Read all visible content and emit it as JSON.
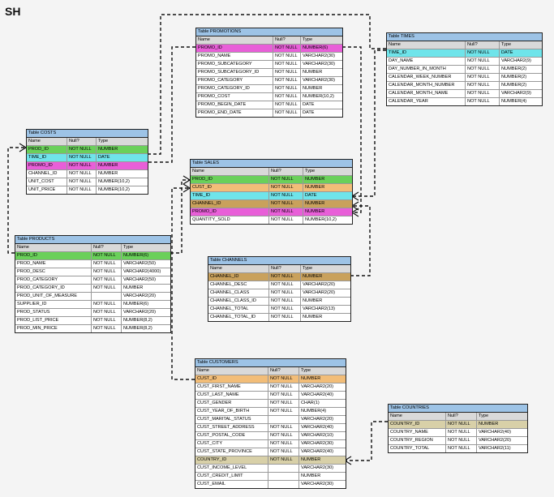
{
  "schema_title": "SH",
  "tables": [
    {
      "id": "promotions",
      "title": "Table PROMOTIONS",
      "headers": [
        "Name",
        "Null?",
        "Type"
      ],
      "rows": [
        {
          "name": "PROMO_ID",
          "null": "NOT NULL",
          "type": "NUMBER(6)",
          "hl": "pink"
        },
        {
          "name": "PROMO_NAME",
          "null": "NOT NULL",
          "type": "VARCHAR2(30)"
        },
        {
          "name": "PROMO_SUBCATEGORY",
          "null": "NOT NULL",
          "type": "VARCHAR2(30)"
        },
        {
          "name": "PROMO_SUBCATEGORY_ID",
          "null": "NOT NULL",
          "type": "NUMBER"
        },
        {
          "name": "PROMO_CATEGORY",
          "null": "NOT NULL",
          "type": "VARCHAR2(30)"
        },
        {
          "name": "PROMO_CATEGORY_ID",
          "null": "NOT NULL",
          "type": "NUMBER"
        },
        {
          "name": "PROMO_COST",
          "null": "NOT NULL",
          "type": "NUMBER(10,2)"
        },
        {
          "name": "PROMO_BEGIN_DATE",
          "null": "NOT NULL",
          "type": "DATE"
        },
        {
          "name": "PROMO_END_DATE",
          "null": "NOT NULL",
          "type": "DATE"
        }
      ]
    },
    {
      "id": "times",
      "title": "Table TIMES",
      "headers": [
        "Name",
        "Null?",
        "Type"
      ],
      "rows": [
        {
          "name": "TIME_ID",
          "null": "NOT NULL",
          "type": "DATE",
          "hl": "cyan"
        },
        {
          "name": "DAY_NAME",
          "null": "NOT NULL",
          "type": "VARCHAR2(9)"
        },
        {
          "name": "DAY_NUMBER_IN_MONTH",
          "null": "NOT NULL",
          "type": "NUMBER(2)"
        },
        {
          "name": "CALENDAR_WEEK_NUMBER",
          "null": "NOT NULL",
          "type": "NUMBER(2)"
        },
        {
          "name": "CALENDAR_MONTH_NUMBER",
          "null": "NOT NULL",
          "type": "NUMBER(2)"
        },
        {
          "name": "CALENDAR_MONTH_NAME",
          "null": "NOT NULL",
          "type": "VARCHAR2(9)"
        },
        {
          "name": "CALENDAR_YEAR",
          "null": "NOT NULL",
          "type": "NUMBER(4)"
        }
      ]
    },
    {
      "id": "costs",
      "title": "Table COSTS",
      "headers": [
        "Name",
        "Null?",
        "Type"
      ],
      "rows": [
        {
          "name": "PROD_ID",
          "null": "NOT NULL",
          "type": "NUMBER",
          "hl": "green"
        },
        {
          "name": "TIME_ID",
          "null": "NOT NULL",
          "type": "DATE",
          "hl": "cyan"
        },
        {
          "name": "PROMO_ID",
          "null": "NOT NULL",
          "type": "NUMBER",
          "hl": "pink"
        },
        {
          "name": "CHANNEL_ID",
          "null": "NOT NULL",
          "type": "NUMBER"
        },
        {
          "name": "UNIT_COST",
          "null": "NOT NULL",
          "type": "NUMBER(10,2)"
        },
        {
          "name": "UNIT_PRICE",
          "null": "NOT NULL",
          "type": "NUMBER(10,2)"
        }
      ]
    },
    {
      "id": "sales",
      "title": "Table SALES",
      "headers": [
        "Name",
        "Null?",
        "Type"
      ],
      "rows": [
        {
          "name": "PROD_ID",
          "null": "NOT NULL",
          "type": "NUMBER",
          "hl": "green"
        },
        {
          "name": "CUST_ID",
          "null": "NOT NULL",
          "type": "NUMBER",
          "hl": "orange"
        },
        {
          "name": "TIME_ID",
          "null": "NOT NULL",
          "type": "DATE",
          "hl": "cyan"
        },
        {
          "name": "CHANNEL_ID",
          "null": "NOT NULL",
          "type": "NUMBER",
          "hl": "brown"
        },
        {
          "name": "PROMO_ID",
          "null": "NOT NULL",
          "type": "NUMBER",
          "hl": "pink"
        },
        {
          "name": "QUANTITY_SOLD",
          "null": "NOT NULL",
          "type": "NUMBER(10,2)"
        }
      ]
    },
    {
      "id": "products",
      "title": "Table PRODUCTS",
      "headers": [
        "Name",
        "Null?",
        "Type"
      ],
      "rows": [
        {
          "name": "PROD_ID",
          "null": "NOT NULL",
          "type": "NUMBER(6)",
          "hl": "green"
        },
        {
          "name": "PROD_NAME",
          "null": "NOT NULL",
          "type": "VARCHAR2(50)"
        },
        {
          "name": "PROD_DESC",
          "null": "NOT NULL",
          "type": "VARCHAR2(4000)"
        },
        {
          "name": "PROD_CATEGORY",
          "null": "NOT NULL",
          "type": "VARCHAR2(50)"
        },
        {
          "name": "PROD_CATEGORY_ID",
          "null": "NOT NULL",
          "type": "NUMBER"
        },
        {
          "name": "PROD_UNIT_OF_MEASURE",
          "null": "",
          "type": "VARCHAR2(20)"
        },
        {
          "name": "SUPPLIER_ID",
          "null": "NOT NULL",
          "type": "NUMBER(6)"
        },
        {
          "name": "PROD_STATUS",
          "null": "NOT NULL",
          "type": "VARCHAR2(20)"
        },
        {
          "name": "PROD_LIST_PRICE",
          "null": "NOT NULL",
          "type": "NUMBER(8,2)"
        },
        {
          "name": "PROD_MIN_PRICE",
          "null": "NOT NULL",
          "type": "NUMBER(8,2)"
        }
      ]
    },
    {
      "id": "channels",
      "title": "Table CHANNELS",
      "headers": [
        "Name",
        "Null?",
        "Type"
      ],
      "rows": [
        {
          "name": "CHANNEL_ID",
          "null": "NOT NULL",
          "type": "NUMBER",
          "hl": "brown"
        },
        {
          "name": "CHANNEL_DESC",
          "null": "NOT NULL",
          "type": "VARCHAR2(20)"
        },
        {
          "name": "CHANNEL_CLASS",
          "null": "NOT NULL",
          "type": "VARCHAR2(20)"
        },
        {
          "name": "CHANNEL_CLASS_ID",
          "null": "NOT NULL",
          "type": "NUMBER"
        },
        {
          "name": "CHANNEL_TOTAL",
          "null": "NOT NULL",
          "type": "VARCHAR2(13)"
        },
        {
          "name": "CHANNEL_TOTAL_ID",
          "null": "NOT NULL",
          "type": "NUMBER"
        }
      ]
    },
    {
      "id": "customers",
      "title": "Table CUSTOMERS",
      "headers": [
        "Name",
        "Null?",
        "Type"
      ],
      "rows": [
        {
          "name": "CUST_ID",
          "null": "NOT NULL",
          "type": "NUMBER",
          "hl": "orange"
        },
        {
          "name": "CUST_FIRST_NAME",
          "null": "NOT NULL",
          "type": "VARCHAR2(20)"
        },
        {
          "name": "CUST_LAST_NAME",
          "null": "NOT NULL",
          "type": "VARCHAR2(40)"
        },
        {
          "name": "CUST_GENDER",
          "null": "NOT NULL",
          "type": "CHAR(1)"
        },
        {
          "name": "CUST_YEAR_OF_BIRTH",
          "null": "NOT NULL",
          "type": "NUMBER(4)"
        },
        {
          "name": "CUST_MARITAL_STATUS",
          "null": "",
          "type": "VARCHAR2(20)"
        },
        {
          "name": "CUST_STREET_ADDRESS",
          "null": "NOT NULL",
          "type": "VARCHAR2(40)"
        },
        {
          "name": "CUST_POSTAL_CODE",
          "null": "NOT NULL",
          "type": "VARCHAR2(10)"
        },
        {
          "name": "CUST_CITY",
          "null": "NOT NULL",
          "type": "VARCHAR2(30)"
        },
        {
          "name": "CUST_STATE_PROVINCE",
          "null": "NOT NULL",
          "type": "VARCHAR2(40)"
        },
        {
          "name": "COUNTRY_ID",
          "null": "NOT NULL",
          "type": "NUMBER",
          "hl": "khaki"
        },
        {
          "name": "CUST_INCOME_LEVEL",
          "null": "",
          "type": "VARCHAR2(30)"
        },
        {
          "name": "CUST_CREDIT_LIMIT",
          "null": "",
          "type": "NUMBER"
        },
        {
          "name": "CUST_EMAIL",
          "null": "",
          "type": "VARCHAR2(30)"
        }
      ]
    },
    {
      "id": "countries",
      "title": "Table COUNTRIES",
      "headers": [
        "Name",
        "Null?",
        "Type"
      ],
      "rows": [
        {
          "name": "COUNTRY_ID",
          "null": "NOT NULL",
          "type": "NUMBER",
          "hl": "khaki"
        },
        {
          "name": "COUNTRY_NAME",
          "null": "NOT NULL",
          "type": "VARCHAR2(40)"
        },
        {
          "name": "COUNTRY_REGION",
          "null": "NOT NULL",
          "type": "VARCHAR2(20)"
        },
        {
          "name": "COUNTRY_TOTAL",
          "null": "NOT NULL",
          "type": "VARCHAR2(11)"
        }
      ]
    }
  ]
}
